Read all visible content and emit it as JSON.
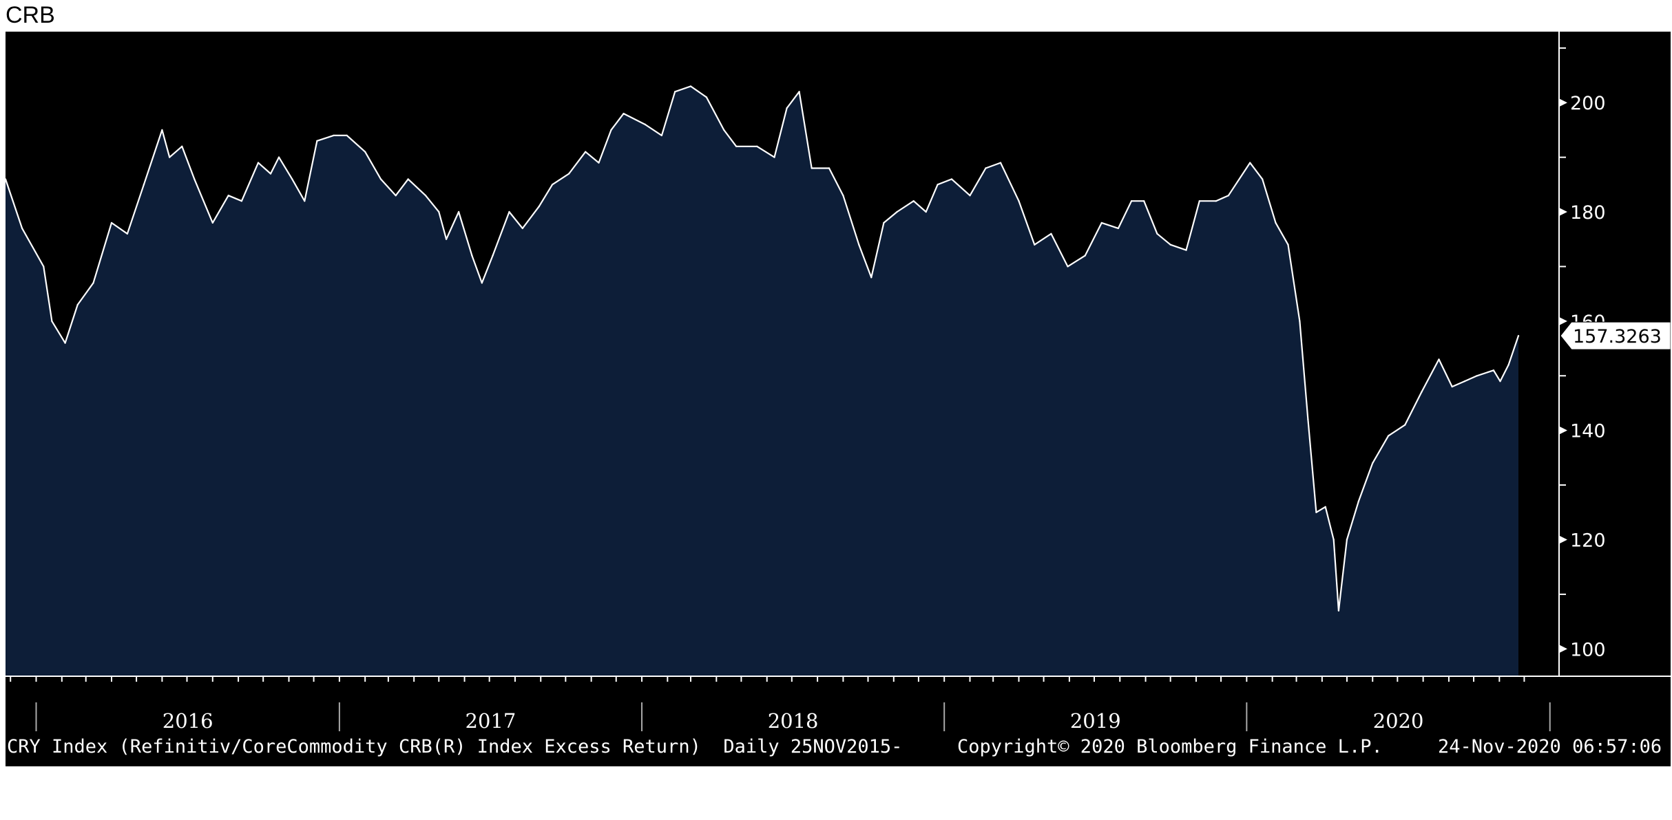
{
  "title": "CRB",
  "footer": {
    "description": "CRY Index (Refinitiv/CoreCommodity CRB(R) Index Excess Return)  Daily 25NOV2015-",
    "copyright": "Copyright© 2020 Bloomberg Finance L.P.",
    "timestamp": "24-Nov-2020 06:57:06"
  },
  "colors": {
    "background": "#000000",
    "area_fill": "#0d1e38",
    "line": "#ffffff",
    "axis": "#ffffff"
  },
  "chart_data": {
    "type": "area",
    "title": "CRB",
    "xlabel": "",
    "ylabel": "",
    "ylim": [
      95,
      213
    ],
    "xlim": [
      "2015-11-25",
      "2020-11-24"
    ],
    "y_ticks": [
      100,
      120,
      140,
      160,
      180,
      200
    ],
    "x_labels": [
      "2016",
      "2017",
      "2018",
      "2019",
      "2020"
    ],
    "grid": false,
    "last_value_label": "157.3263",
    "series": [
      {
        "x": [
          "2015-11-25",
          "2015-12-15",
          "2016-01-10",
          "2016-01-20",
          "2016-02-05",
          "2016-02-20",
          "2016-03-10",
          "2016-04-01",
          "2016-04-20",
          "2016-05-10",
          "2016-06-01",
          "2016-06-10",
          "2016-06-25",
          "2016-07-10",
          "2016-08-01",
          "2016-08-20",
          "2016-09-05",
          "2016-09-25",
          "2016-10-10",
          "2016-10-20",
          "2016-11-05",
          "2016-11-20",
          "2016-12-05",
          "2016-12-25",
          "2017-01-10",
          "2017-02-01",
          "2017-02-20",
          "2017-03-10",
          "2017-03-25",
          "2017-04-15",
          "2017-05-01",
          "2017-05-10",
          "2017-05-25",
          "2017-06-10",
          "2017-06-22",
          "2017-07-05",
          "2017-07-25",
          "2017-08-10",
          "2017-08-30",
          "2017-09-15",
          "2017-10-05",
          "2017-10-25",
          "2017-11-10",
          "2017-11-25",
          "2017-12-10",
          "2018-01-05",
          "2018-01-25",
          "2018-02-10",
          "2018-03-01",
          "2018-03-20",
          "2018-04-10",
          "2018-04-25",
          "2018-05-20",
          "2018-06-10",
          "2018-06-25",
          "2018-07-10",
          "2018-07-25",
          "2018-08-15",
          "2018-09-01",
          "2018-09-20",
          "2018-10-05",
          "2018-10-20",
          "2018-11-05",
          "2018-11-25",
          "2018-12-10",
          "2018-12-24",
          "2019-01-10",
          "2019-02-01",
          "2019-02-20",
          "2019-03-10",
          "2019-04-01",
          "2019-04-20",
          "2019-05-10",
          "2019-05-30",
          "2019-06-20",
          "2019-07-10",
          "2019-07-30",
          "2019-08-15",
          "2019-08-30",
          "2019-09-15",
          "2019-10-01",
          "2019-10-20",
          "2019-11-05",
          "2019-11-25",
          "2019-12-10",
          "2020-01-05",
          "2020-01-20",
          "2020-02-05",
          "2020-02-20",
          "2020-03-05",
          "2020-03-15",
          "2020-03-25",
          "2020-04-05",
          "2020-04-15",
          "2020-04-21",
          "2020-05-01",
          "2020-05-15",
          "2020-06-01",
          "2020-06-20",
          "2020-07-10",
          "2020-07-30",
          "2020-08-20",
          "2020-09-05",
          "2020-09-20",
          "2020-10-05",
          "2020-10-25",
          "2020-11-02",
          "2020-11-12",
          "2020-11-24"
        ],
        "y": [
          186,
          177,
          170,
          160,
          156,
          163,
          167,
          178,
          176,
          185,
          195,
          190,
          192,
          186,
          178,
          183,
          182,
          189,
          187,
          190,
          186,
          182,
          193,
          194,
          194,
          191,
          186,
          183,
          186,
          183,
          180,
          175,
          180,
          172,
          167,
          172,
          180,
          177,
          181,
          185,
          187,
          191,
          189,
          195,
          198,
          196,
          194,
          202,
          203,
          201,
          195,
          192,
          192,
          190,
          199,
          202,
          188,
          188,
          183,
          174,
          168,
          178,
          180,
          182,
          180,
          185,
          186,
          183,
          188,
          189,
          182,
          174,
          176,
          170,
          172,
          178,
          177,
          182,
          182,
          176,
          174,
          173,
          182,
          182,
          183,
          189,
          186,
          178,
          174,
          160,
          142,
          125,
          126,
          120,
          107,
          120,
          127,
          134,
          139,
          141,
          147,
          153,
          148,
          149,
          150,
          151,
          149,
          152,
          157.3263
        ]
      }
    ]
  }
}
